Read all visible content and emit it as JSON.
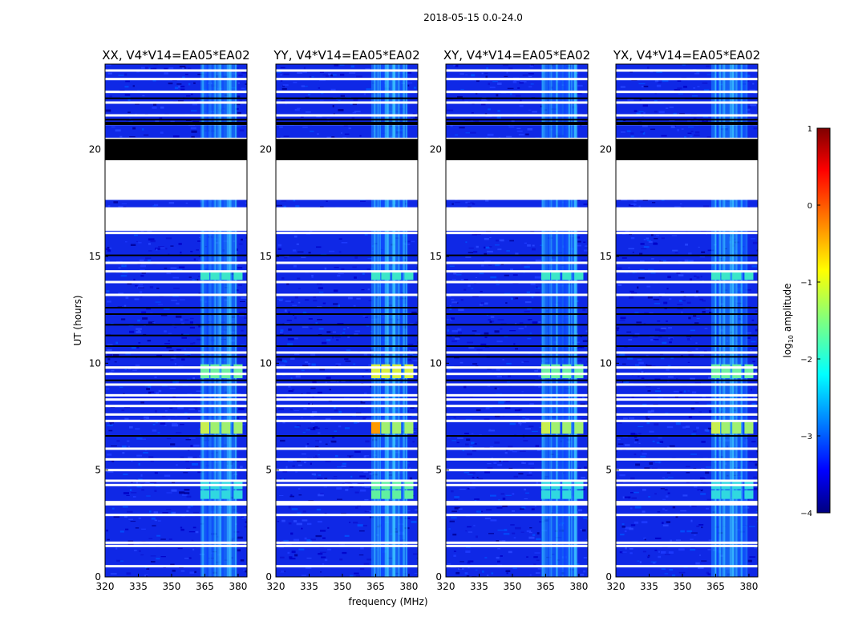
{
  "chart_data": {
    "type": "heatmap",
    "title": "2018-05-15 0.0-24.0",
    "xlabel": "frequency (MHz)",
    "ylabel": "UT (hours)",
    "xlim": [
      320,
      384
    ],
    "ylim": [
      0,
      24
    ],
    "xticks": [
      "320",
      "335",
      "350",
      "365",
      "380"
    ],
    "yticks": [
      "0",
      "5",
      "10",
      "15",
      "20"
    ],
    "panels": [
      {
        "title": "XX, V4*V14=EA05*EA02"
      },
      {
        "title": "YY, V4*V14=EA05*EA02"
      },
      {
        "title": "XY, V4*V14=EA05*EA02"
      },
      {
        "title": "YX, V4*V14=EA05*EA02"
      }
    ],
    "colorbar": {
      "label": "log10 amplitude",
      "range": [
        -4,
        1
      ],
      "ticks": [
        "1",
        "0",
        "−1",
        "−2",
        "−3",
        "−4"
      ]
    },
    "flagged_blank_hours": [
      [
        16.2,
        17.3
      ],
      [
        17.7,
        19.5
      ]
    ],
    "flagged_black_hours": [
      [
        19.5,
        20.5
      ]
    ],
    "rfi_band_mhz": [
      363,
      383
    ],
    "white_lines_hours": [
      0.5,
      1.45,
      1.6,
      2.9,
      3.4,
      3.5,
      4.3,
      4.5,
      5.0,
      5.5,
      6.0,
      7.3,
      7.6,
      8.0,
      8.3,
      8.5,
      9.0,
      9.5,
      9.8,
      10.5,
      13.2,
      13.8,
      14.3,
      14.7,
      16.1,
      17.7,
      20.5,
      21.2,
      21.6,
      22.2,
      22.7,
      23.3,
      23.7
    ],
    "black_lines_hours": [
      6.6,
      9.2,
      10.3,
      10.8,
      11.3,
      11.8,
      12.3,
      12.6,
      15.05,
      21.4,
      22.4
    ],
    "bright_rows_hours": [
      [
        3.65,
        4.05
      ],
      [
        4.1,
        4.45
      ],
      [
        6.7,
        7.25
      ],
      [
        9.3,
        9.95
      ],
      [
        13.9,
        14.3
      ]
    ]
  }
}
